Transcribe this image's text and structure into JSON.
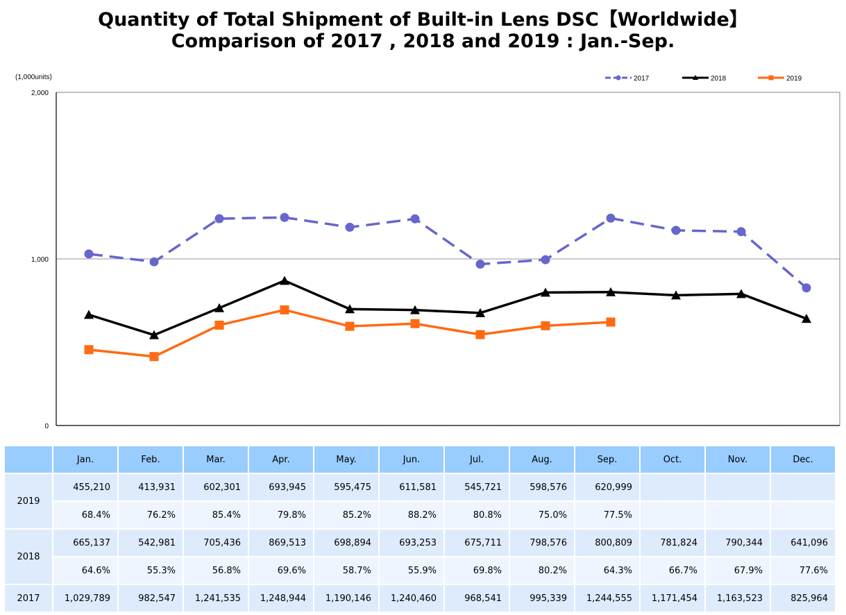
{
  "title_line1": "Quantity of Total Shipment of Built-in Lens DSC【Worldwide】",
  "title_line2": "Comparison of 2017 , 2018 and 2019 : Jan.-Sep.",
  "chart_data": {
    "type": "line",
    "title": "Quantity of Total Shipment of Built-in Lens DSC【Worldwide】 Comparison of 2017 , 2018 and 2019 : Jan.-Sep.",
    "ylabel": "(1,000units)",
    "xlabel": "",
    "ylim": [
      0,
      2000
    ],
    "yticks": [
      "0",
      "1,000",
      "2,000"
    ],
    "ytick_values": [
      0,
      1000,
      2000
    ],
    "grid": "horizontal line at 1,000",
    "legend_position": "top-right",
    "categories": [
      "Jan.",
      "Feb.",
      "Mar.",
      "Apr.",
      "May.",
      "Jun.",
      "Jul.",
      "Aug.",
      "Sep.",
      "Oct.",
      "Nov.",
      "Dec."
    ],
    "series": [
      {
        "name": "2017",
        "color": "#6666cc",
        "style": "dashed",
        "marker": "circle",
        "values": [
          1029.789,
          982.547,
          1241.535,
          1248.944,
          1190.146,
          1240.46,
          968.541,
          995.339,
          1244.555,
          1171.454,
          1163.523,
          825.964
        ]
      },
      {
        "name": "2018",
        "color": "#000000",
        "style": "solid",
        "marker": "triangle",
        "values": [
          665.137,
          542.981,
          705.436,
          869.513,
          698.894,
          693.253,
          675.711,
          798.576,
          800.809,
          781.824,
          790.344,
          641.096
        ]
      },
      {
        "name": "2019",
        "color": "#ff6a13",
        "style": "solid",
        "marker": "square",
        "values": [
          455.21,
          413.931,
          602.301,
          693.945,
          595.475,
          611.581,
          545.721,
          598.576,
          620.999,
          null,
          null,
          null
        ]
      }
    ]
  },
  "table": {
    "months": [
      "Jan.",
      "Feb.",
      "Mar.",
      "Apr.",
      "May.",
      "Jun.",
      "Jul.",
      "Aug.",
      "Sep.",
      "Oct.",
      "Nov.",
      "Dec."
    ],
    "rows": [
      {
        "year": "2019",
        "values": [
          "455,210",
          "413,931",
          "602,301",
          "693,945",
          "595,475",
          "611,581",
          "545,721",
          "598,576",
          "620,999",
          "",
          "",
          ""
        ],
        "pct": [
          "68.4%",
          "76.2%",
          "85.4%",
          "79.8%",
          "85.2%",
          "88.2%",
          "80.8%",
          "75.0%",
          "77.5%",
          "",
          "",
          ""
        ]
      },
      {
        "year": "2018",
        "values": [
          "665,137",
          "542,981",
          "705,436",
          "869,513",
          "698,894",
          "693,253",
          "675,711",
          "798,576",
          "800,809",
          "781,824",
          "790,344",
          "641,096"
        ],
        "pct": [
          "64.6%",
          "55.3%",
          "56.8%",
          "69.6%",
          "58.7%",
          "55.9%",
          "69.8%",
          "80.2%",
          "64.3%",
          "66.7%",
          "67.9%",
          "77.6%"
        ]
      },
      {
        "year": "2017",
        "values": [
          "1,029,789",
          "982,547",
          "1,241,535",
          "1,248,944",
          "1,190,146",
          "1,240,460",
          "968,541",
          "995,339",
          "1,244,555",
          "1,171,454",
          "1,163,523",
          "825,964"
        ]
      }
    ]
  }
}
